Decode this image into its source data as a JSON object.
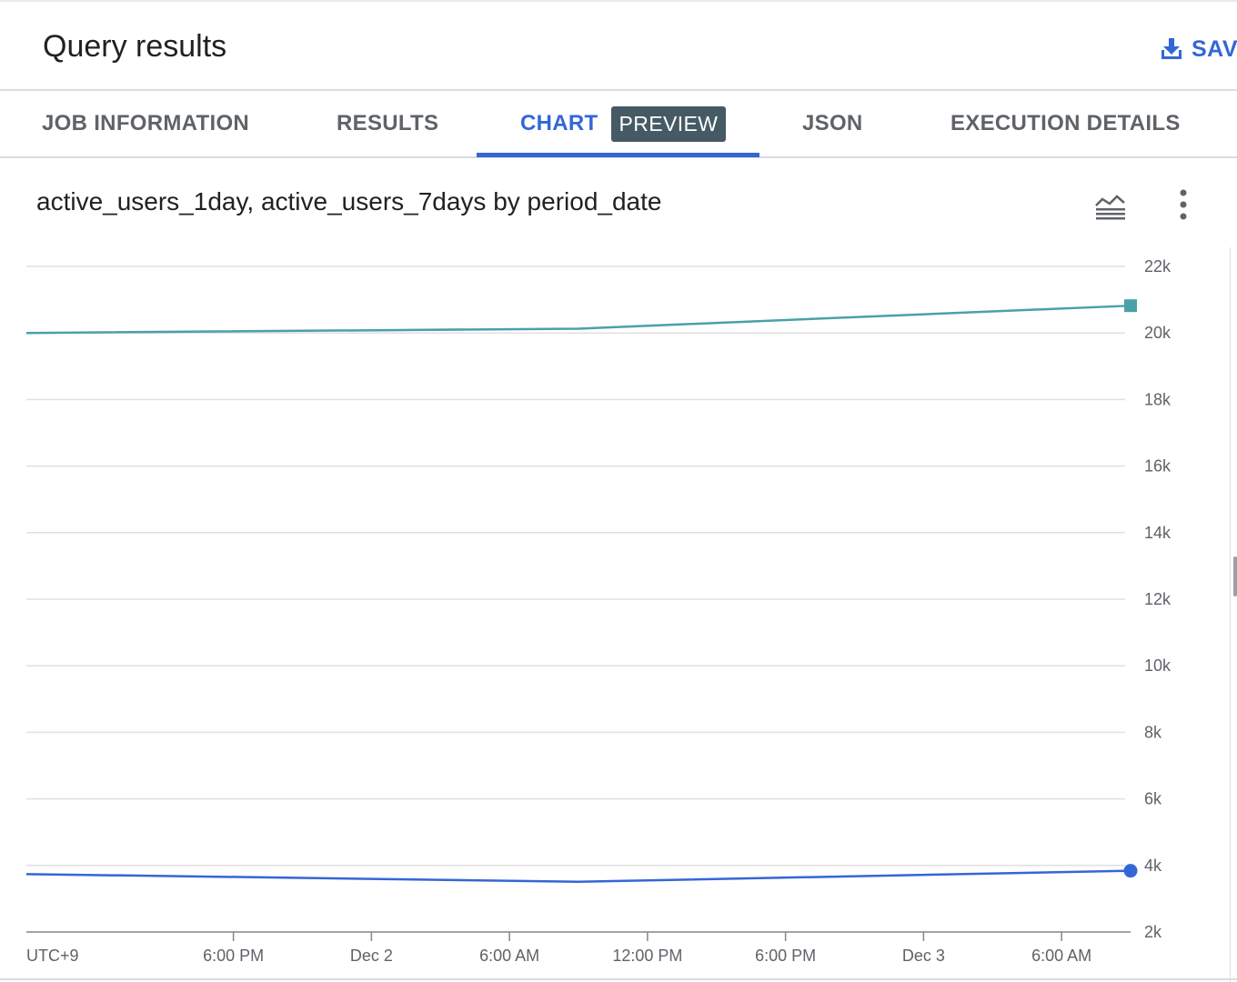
{
  "header": {
    "title": "Query results",
    "save_label": "SAV"
  },
  "tabs": [
    {
      "label": "JOB INFORMATION",
      "active": false
    },
    {
      "label": "RESULTS",
      "active": false
    },
    {
      "label": "CHART",
      "active": true,
      "badge": "PREVIEW"
    },
    {
      "label": "JSON",
      "active": false
    },
    {
      "label": "EXECUTION DETAILS",
      "active": false
    }
  ],
  "icons": {
    "save": "download-icon",
    "chart_type": "line-chart-icon",
    "more": "more-vert-icon"
  },
  "colors": {
    "accent": "#3367d6",
    "badge": "#455a64",
    "series_1day": "#3367d6",
    "series_7days": "#4aa1a8"
  },
  "chart_data": {
    "type": "line",
    "title": "active_users_1day, active_users_7days by period_date",
    "xlabel": "",
    "ylabel": "",
    "timezone_label": "UTC+9",
    "x_ticks": [
      "6:00 PM",
      "Dec 2",
      "6:00 AM",
      "12:00 PM",
      "6:00 PM",
      "Dec 3",
      "6:00 AM"
    ],
    "x_tick_hours": [
      18,
      24,
      30,
      36,
      42,
      48,
      54
    ],
    "x_range_hours": [
      9,
      57
    ],
    "y_ticks": [
      "2k",
      "4k",
      "6k",
      "8k",
      "10k",
      "12k",
      "14k",
      "16k",
      "18k",
      "20k",
      "22k"
    ],
    "ylim": [
      2000,
      22000
    ],
    "grid": true,
    "series": [
      {
        "name": "active_users_7days",
        "marker": "square",
        "x_hours": [
          9,
          33,
          57
        ],
        "values": [
          20000,
          20130,
          20820
        ]
      },
      {
        "name": "active_users_1day",
        "marker": "circle",
        "x_hours": [
          9,
          33,
          57
        ],
        "values": [
          3740,
          3510,
          3840
        ]
      }
    ]
  }
}
